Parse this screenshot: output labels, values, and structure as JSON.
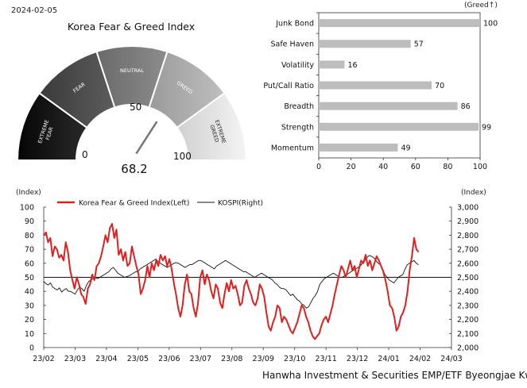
{
  "date": "2024-02-05",
  "gauge": {
    "title": "Korea Fear & Greed Index",
    "value_label": "68.2",
    "value": 68.2,
    "scale_labels": {
      "min": "0",
      "mid": "50",
      "max": "100"
    },
    "segments": [
      "EXTREME FEAR",
      "FEAR",
      "NEUTRAL",
      "GREED",
      "EXTREME GREED"
    ]
  },
  "chart_data": [
    {
      "type": "bar",
      "orientation": "horizontal",
      "unit_label": "(Greed↑)",
      "categories": [
        "Junk Bond",
        "Safe Haven",
        "Volatility",
        "Put/Call Ratio",
        "Breadth",
        "Strength",
        "Momentum"
      ],
      "values": [
        100,
        57,
        16,
        70,
        86,
        99,
        49
      ],
      "value_labels": [
        "100",
        "57",
        "16",
        "70",
        "86",
        "99",
        "49"
      ],
      "xlim": [
        0,
        100
      ],
      "xticks": [
        "0",
        "20",
        "40",
        "60",
        "80",
        "100"
      ],
      "bar_color": "#bdbdbd"
    },
    {
      "type": "line",
      "left_unit": "(Index)",
      "right_unit": "(Index)",
      "legend": [
        "Korea Fear & Greed Index(Left)",
        "KOSPI(Right)"
      ],
      "x_ticks": [
        "23/02",
        "23/03",
        "23/04",
        "23/05",
        "23/06",
        "23/07",
        "23/08",
        "23/09",
        "23/10",
        "23/11",
        "23/12",
        "24/01",
        "24/02",
        "24/03"
      ],
      "left_ylim": [
        0,
        100
      ],
      "left_ticks": [
        "0",
        "10",
        "20",
        "30",
        "40",
        "50",
        "60",
        "70",
        "80",
        "90",
        "100"
      ],
      "right_ylim": [
        2000,
        3000
      ],
      "right_ticks": [
        "2,000",
        "2,100",
        "2,200",
        "2,300",
        "2,400",
        "2,500",
        "2,600",
        "2,700",
        "2,800",
        "2,900",
        "3,000"
      ],
      "reference_line": 50,
      "series": [
        {
          "name": "Korea Fear & Greed Index(Left)",
          "axis": "left",
          "color": "#e02020",
          "values": [
            80,
            82,
            75,
            78,
            65,
            72,
            70,
            64,
            66,
            62,
            75,
            68,
            55,
            48,
            42,
            50,
            45,
            38,
            36,
            31,
            42,
            45,
            52,
            48,
            58,
            60,
            65,
            72,
            80,
            75,
            85,
            88,
            78,
            84,
            66,
            70,
            62,
            68,
            58,
            60,
            72,
            65,
            58,
            52,
            38,
            42,
            48,
            58,
            50,
            60,
            55,
            62,
            58,
            66,
            62,
            65,
            58,
            63,
            56,
            46,
            38,
            28,
            22,
            30,
            45,
            52,
            40,
            38,
            28,
            22,
            32,
            50,
            55,
            45,
            52,
            48,
            40,
            35,
            45,
            42,
            32,
            28,
            38,
            46,
            40,
            48,
            42,
            44,
            38,
            30,
            32,
            44,
            48,
            42,
            38,
            32,
            30,
            35,
            45,
            42,
            36,
            25,
            15,
            12,
            18,
            22,
            30,
            28,
            18,
            22,
            20,
            16,
            12,
            10,
            14,
            18,
            24,
            30,
            28,
            22,
            18,
            12,
            8,
            6,
            8,
            10,
            16,
            20,
            22,
            18,
            24,
            30,
            38,
            45,
            52,
            58,
            55,
            50,
            56,
            62,
            55,
            58,
            50,
            56,
            62,
            60,
            66,
            58,
            62,
            55,
            60,
            65,
            62,
            58,
            54,
            48,
            40,
            30,
            28,
            22,
            12,
            15,
            22,
            25,
            30,
            40,
            55,
            65,
            78,
            70,
            68
          ],
          "x_range": [
            "23/02",
            "24/02"
          ]
        },
        {
          "name": "KOSPI(Right)",
          "axis": "right",
          "color": "#111111",
          "values": [
            2470,
            2455,
            2445,
            2460,
            2430,
            2420,
            2410,
            2425,
            2395,
            2410,
            2420,
            2400,
            2400,
            2390,
            2380,
            2410,
            2430,
            2420,
            2400,
            2440,
            2470,
            2480,
            2490,
            2500,
            2490,
            2500,
            2510,
            2520,
            2530,
            2540,
            2560,
            2570,
            2550,
            2530,
            2520,
            2510,
            2500,
            2505,
            2510,
            2520,
            2530,
            2540,
            2540,
            2560,
            2570,
            2580,
            2590,
            2600,
            2610,
            2620,
            2630,
            2610,
            2600,
            2590,
            2580,
            2570,
            2580,
            2590,
            2600,
            2605,
            2600,
            2590,
            2580,
            2570,
            2580,
            2590,
            2590,
            2600,
            2610,
            2620,
            2620,
            2610,
            2600,
            2590,
            2580,
            2570,
            2560,
            2580,
            2590,
            2600,
            2610,
            2620,
            2610,
            2600,
            2590,
            2580,
            2570,
            2560,
            2550,
            2540,
            2540,
            2530,
            2520,
            2510,
            2500,
            2510,
            2520,
            2530,
            2520,
            2510,
            2500,
            2490,
            2480,
            2460,
            2450,
            2430,
            2420,
            2420,
            2410,
            2390,
            2370,
            2380,
            2360,
            2340,
            2330,
            2310,
            2300,
            2280,
            2290,
            2320,
            2350,
            2370,
            2400,
            2450,
            2470,
            2490,
            2500,
            2510,
            2520,
            2530,
            2520,
            2510,
            2500,
            2500,
            2510,
            2520,
            2530,
            2540,
            2550,
            2560,
            2570,
            2580,
            2600,
            2620,
            2640,
            2655,
            2650,
            2640,
            2620,
            2600,
            2590,
            2560,
            2520,
            2500,
            2480,
            2470,
            2460,
            2480,
            2500,
            2510,
            2520,
            2560,
            2590,
            2600,
            2610,
            2620,
            2600,
            2590
          ],
          "x_range": [
            "23/02",
            "24/02"
          ]
        }
      ]
    }
  ],
  "credit": "Hanwha Investment & Securities EMP/ETF Byeongjae Kwon"
}
